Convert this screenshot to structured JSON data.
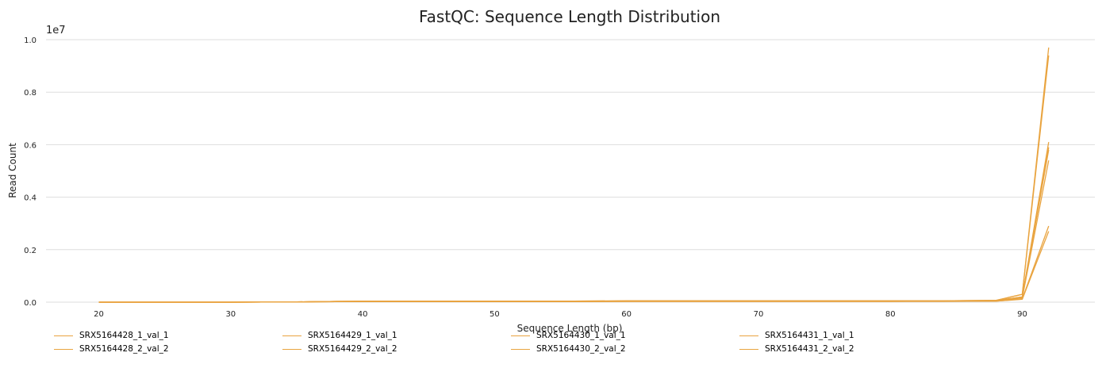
{
  "chart_data": {
    "type": "line",
    "title": "FastQC: Sequence Length Distribution",
    "xlabel": "Sequence Length (bp)",
    "ylabel": "Read Count",
    "y_multiplier_label": "1e7",
    "xlim": [
      16,
      95.5
    ],
    "ylim": [
      0,
      1.0
    ],
    "xticks": [
      20,
      30,
      40,
      50,
      60,
      70,
      80,
      90
    ],
    "yticks": [
      0.0,
      0.2,
      0.4,
      0.6,
      0.8,
      1.0
    ],
    "ytick_labels": [
      "0.0",
      "0.2",
      "0.4",
      "0.6",
      "0.8",
      "1.0"
    ],
    "grid": "horizontal",
    "legend_position": "bottom",
    "line_color": "#e9a440",
    "series": [
      {
        "name": "SRX5164428_1_val_1",
        "x": [
          20,
          30,
          35,
          38,
          40,
          44,
          48,
          52,
          56,
          60,
          64,
          68,
          72,
          76,
          80,
          84,
          88,
          90,
          92
        ],
        "y": [
          0,
          0,
          0.001,
          0.003,
          0.004,
          0.004,
          0.004,
          0.004,
          0.004,
          0.005,
          0.005,
          0.005,
          0.005,
          0.005,
          0.005,
          0.005,
          0.007,
          0.03,
          0.97
        ]
      },
      {
        "name": "SRX5164428_2_val_2",
        "x": [
          20,
          30,
          35,
          38,
          40,
          44,
          48,
          52,
          56,
          60,
          64,
          68,
          72,
          76,
          80,
          84,
          88,
          90,
          92
        ],
        "y": [
          0,
          0,
          0.001,
          0.003,
          0.004,
          0.004,
          0.004,
          0.004,
          0.004,
          0.005,
          0.005,
          0.005,
          0.005,
          0.005,
          0.005,
          0.005,
          0.007,
          0.03,
          0.94
        ]
      },
      {
        "name": "SRX5164429_1_val_1",
        "x": [
          20,
          30,
          35,
          38,
          40,
          44,
          48,
          52,
          56,
          60,
          64,
          68,
          72,
          76,
          80,
          84,
          88,
          90,
          92
        ],
        "y": [
          0,
          0,
          0.001,
          0.003,
          0.003,
          0.004,
          0.004,
          0.004,
          0.004,
          0.004,
          0.004,
          0.004,
          0.004,
          0.004,
          0.004,
          0.004,
          0.006,
          0.02,
          0.61
        ]
      },
      {
        "name": "SRX5164429_2_val_2",
        "x": [
          20,
          30,
          35,
          38,
          40,
          44,
          48,
          52,
          56,
          60,
          64,
          68,
          72,
          76,
          80,
          84,
          88,
          90,
          92
        ],
        "y": [
          0,
          0,
          0.001,
          0.003,
          0.003,
          0.004,
          0.004,
          0.004,
          0.004,
          0.004,
          0.004,
          0.004,
          0.004,
          0.004,
          0.004,
          0.004,
          0.006,
          0.02,
          0.58
        ]
      },
      {
        "name": "SRX5164430_1_val_1",
        "x": [
          20,
          30,
          35,
          38,
          40,
          44,
          48,
          52,
          56,
          60,
          64,
          68,
          72,
          76,
          80,
          84,
          88,
          90,
          92
        ],
        "y": [
          0,
          0,
          0.001,
          0.002,
          0.003,
          0.003,
          0.003,
          0.003,
          0.003,
          0.003,
          0.003,
          0.003,
          0.003,
          0.003,
          0.003,
          0.004,
          0.005,
          0.018,
          0.59
        ]
      },
      {
        "name": "SRX5164430_2_val_2",
        "x": [
          20,
          30,
          35,
          38,
          40,
          44,
          48,
          52,
          56,
          60,
          64,
          68,
          72,
          76,
          80,
          84,
          88,
          90,
          92
        ],
        "y": [
          0,
          0,
          0.001,
          0.002,
          0.003,
          0.003,
          0.003,
          0.003,
          0.003,
          0.003,
          0.003,
          0.003,
          0.003,
          0.003,
          0.003,
          0.004,
          0.005,
          0.016,
          0.54
        ]
      },
      {
        "name": "SRX5164431_1_val_1",
        "x": [
          20,
          30,
          35,
          38,
          40,
          44,
          48,
          52,
          56,
          60,
          64,
          68,
          72,
          76,
          80,
          84,
          88,
          90,
          92
        ],
        "y": [
          0,
          0,
          0.001,
          0.002,
          0.002,
          0.002,
          0.002,
          0.002,
          0.002,
          0.003,
          0.003,
          0.003,
          0.003,
          0.003,
          0.003,
          0.003,
          0.004,
          0.012,
          0.29
        ]
      },
      {
        "name": "SRX5164431_2_val_2",
        "x": [
          20,
          30,
          35,
          38,
          40,
          44,
          48,
          52,
          56,
          60,
          64,
          68,
          72,
          76,
          80,
          84,
          88,
          90,
          92
        ],
        "y": [
          0,
          0,
          0.001,
          0.002,
          0.002,
          0.002,
          0.002,
          0.002,
          0.002,
          0.003,
          0.003,
          0.003,
          0.003,
          0.003,
          0.003,
          0.003,
          0.004,
          0.011,
          0.27
        ]
      }
    ]
  }
}
